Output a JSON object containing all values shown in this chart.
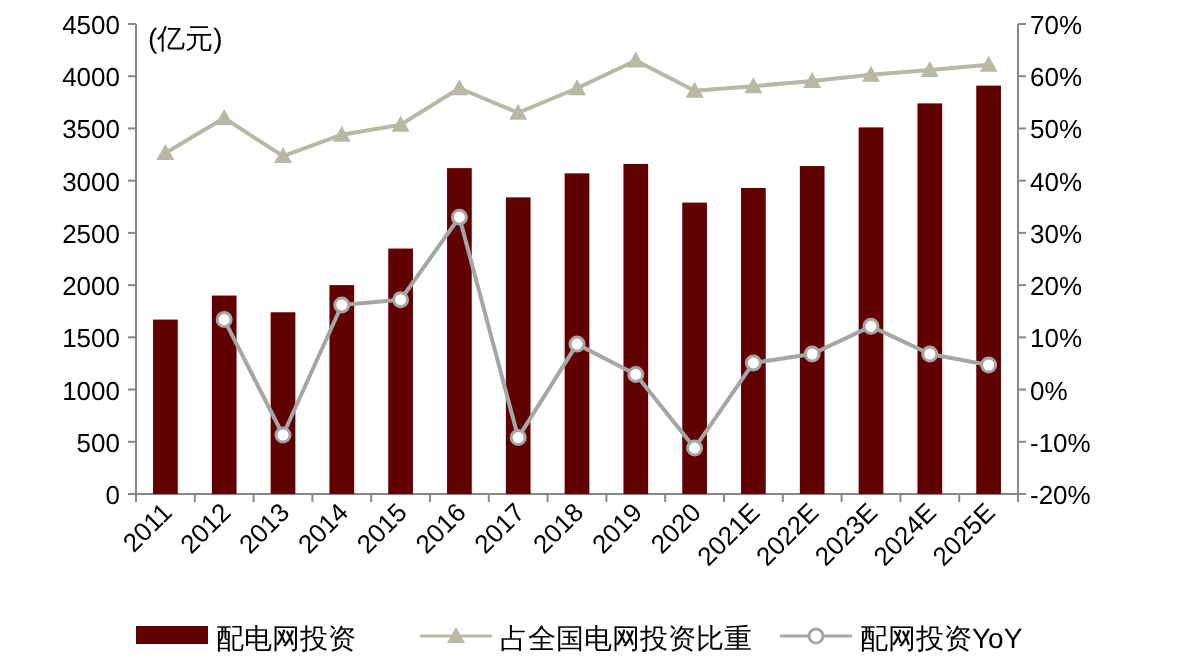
{
  "chart_data": {
    "type": "bar",
    "categories": [
      "2011",
      "2012",
      "2013",
      "2014",
      "2015",
      "2016",
      "2017",
      "2018",
      "2019",
      "2020",
      "2021E",
      "2022E",
      "2023E",
      "2024E",
      "2025E"
    ],
    "series": [
      {
        "name": "配电网投资",
        "color": "#600000",
        "values": [
          1670,
          1900,
          1740,
          2000,
          2350,
          3120,
          2840,
          3070,
          3160,
          2790,
          2930,
          3140,
          3510,
          3740,
          3910
        ]
      },
      {
        "name": "占全国电网投资比重",
        "type": "line",
        "axis": "y2",
        "marker": "triangle",
        "color": "#b8b8a4",
        "values": [
          45.3,
          52.0,
          44.7,
          48.8,
          50.7,
          57.7,
          53.0,
          57.7,
          63.0,
          57.2,
          58.1,
          59.1,
          60.3,
          61.2,
          62.2
        ]
      },
      {
        "name": "配网投资YoY",
        "type": "line",
        "axis": "y2",
        "marker": "circle",
        "color": "#a6a6a6",
        "values": [
          null,
          13.4,
          -8.7,
          16.2,
          17.2,
          33.0,
          -9.2,
          8.7,
          2.9,
          -11.2,
          5.1,
          6.8,
          12.1,
          6.8,
          4.7
        ]
      }
    ],
    "ylim": [
      0,
      4500
    ],
    "yticks": [
      0,
      500,
      1000,
      1500,
      2000,
      2500,
      3000,
      3500,
      4000,
      4500
    ],
    "y2lim": [
      -20,
      70
    ],
    "y2ticks": [
      {
        "value": -20,
        "label": "-20%"
      },
      {
        "value": -10,
        "label": "-10%"
      },
      {
        "value": 0,
        "label": "0%"
      },
      {
        "value": 10,
        "label": "10%"
      },
      {
        "value": 20,
        "label": "20%"
      },
      {
        "value": 30,
        "label": "30%"
      },
      {
        "value": 40,
        "label": "40%"
      },
      {
        "value": 50,
        "label": "50%"
      },
      {
        "value": 60,
        "label": "60%"
      },
      {
        "value": 70,
        "label": "70%"
      }
    ],
    "annotations": [
      "(亿元)"
    ],
    "legend": "bottom",
    "grid": false
  }
}
